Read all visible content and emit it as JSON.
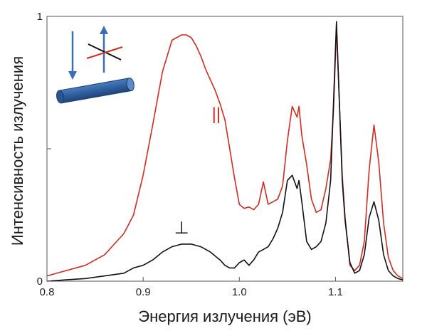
{
  "chart_data": {
    "type": "line",
    "title": "",
    "xlabel": "Энергия излучения (эВ)",
    "ylabel": "Интенсивность излучения",
    "xlim": [
      0.8,
      1.17
    ],
    "ylim": [
      0,
      1
    ],
    "x_ticks": [
      0.8,
      0.9,
      1.0,
      1.1
    ],
    "x_tick_labels": [
      "0.8",
      "0.9",
      "1.0",
      "1.1"
    ],
    "y_ticks": [
      0,
      0.5,
      1
    ],
    "y_tick_labels": [
      "0",
      "",
      "1"
    ],
    "grid": false,
    "legend": "none",
    "series": [
      {
        "name": "||",
        "color": "#d42a1f",
        "x": [
          0.8,
          0.82,
          0.84,
          0.85,
          0.86,
          0.87,
          0.88,
          0.89,
          0.9,
          0.91,
          0.92,
          0.93,
          0.94,
          0.945,
          0.95,
          0.955,
          0.96,
          0.965,
          0.97,
          0.975,
          0.98,
          0.985,
          0.99,
          0.995,
          1.0,
          1.005,
          1.01,
          1.015,
          1.02,
          1.025,
          1.03,
          1.035,
          1.04,
          1.045,
          1.05,
          1.055,
          1.06,
          1.062,
          1.065,
          1.07,
          1.075,
          1.08,
          1.085,
          1.09,
          1.095,
          1.098,
          1.101,
          1.104,
          1.107,
          1.11,
          1.115,
          1.12,
          1.125,
          1.13,
          1.135,
          1.14,
          1.145,
          1.15,
          1.155,
          1.16,
          1.165,
          1.17
        ],
        "y": [
          0.02,
          0.04,
          0.06,
          0.08,
          0.1,
          0.14,
          0.18,
          0.25,
          0.4,
          0.59,
          0.79,
          0.91,
          0.93,
          0.93,
          0.92,
          0.89,
          0.85,
          0.8,
          0.76,
          0.72,
          0.67,
          0.61,
          0.5,
          0.39,
          0.29,
          0.275,
          0.28,
          0.27,
          0.29,
          0.375,
          0.29,
          0.3,
          0.31,
          0.36,
          0.53,
          0.66,
          0.62,
          0.66,
          0.55,
          0.44,
          0.31,
          0.26,
          0.27,
          0.35,
          0.46,
          0.65,
          0.96,
          0.68,
          0.4,
          0.24,
          0.06,
          0.04,
          0.06,
          0.15,
          0.42,
          0.59,
          0.45,
          0.22,
          0.09,
          0.04,
          0.02,
          0.01
        ]
      },
      {
        "name": "⊥",
        "color": "#111111",
        "x": [
          0.8,
          0.82,
          0.84,
          0.86,
          0.88,
          0.89,
          0.9,
          0.91,
          0.92,
          0.93,
          0.94,
          0.95,
          0.96,
          0.97,
          0.98,
          0.985,
          0.99,
          0.995,
          1.0,
          1.005,
          1.01,
          1.015,
          1.02,
          1.025,
          1.03,
          1.035,
          1.04,
          1.045,
          1.05,
          1.055,
          1.06,
          1.062,
          1.065,
          1.07,
          1.075,
          1.08,
          1.085,
          1.09,
          1.095,
          1.098,
          1.101,
          1.104,
          1.107,
          1.11,
          1.115,
          1.12,
          1.125,
          1.13,
          1.135,
          1.14,
          1.145,
          1.15,
          1.155,
          1.16,
          1.165,
          1.17
        ],
        "y": [
          0.0,
          0.005,
          0.01,
          0.02,
          0.03,
          0.05,
          0.06,
          0.08,
          0.11,
          0.13,
          0.14,
          0.14,
          0.13,
          0.11,
          0.08,
          0.06,
          0.05,
          0.05,
          0.07,
          0.08,
          0.06,
          0.08,
          0.11,
          0.12,
          0.13,
          0.16,
          0.2,
          0.26,
          0.38,
          0.4,
          0.35,
          0.38,
          0.3,
          0.15,
          0.12,
          0.13,
          0.15,
          0.22,
          0.38,
          0.68,
          0.98,
          0.68,
          0.38,
          0.23,
          0.07,
          0.03,
          0.04,
          0.1,
          0.24,
          0.3,
          0.23,
          0.1,
          0.04,
          0.02,
          0.01,
          0.005
        ]
      }
    ],
    "annotations": [
      {
        "text": "||",
        "color": "#d42a1f",
        "x": 0.976,
        "y": 0.61
      },
      {
        "text": "⊥",
        "color": "#111111",
        "x": 0.94,
        "y": 0.18
      }
    ]
  },
  "inset": {
    "description_icons": [
      "down-arrow-icon",
      "up-arrow-icon",
      "polarizer-cross-icon",
      "nanowire-icon"
    ],
    "arrow_color": "#3a6fb5",
    "wire_color": "#2f5f9e",
    "cross_red": "#d42a1f",
    "cross_black": "#111111"
  }
}
